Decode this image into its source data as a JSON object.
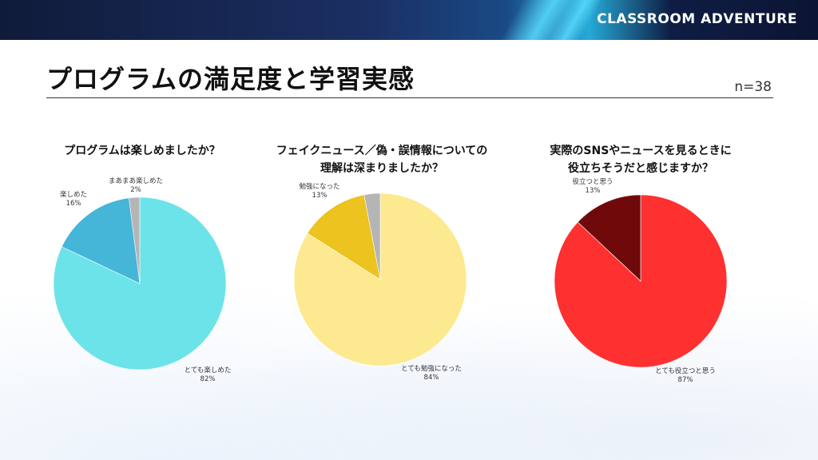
{
  "header": {
    "brand": "CLASSROOM ADVENTURE"
  },
  "page": {
    "title": "プログラムの満足度と学習実感",
    "sample_size": "n=38"
  },
  "chart_data": [
    {
      "type": "pie",
      "title_lines": [
        "プログラムは楽しめましたか？"
      ],
      "slices": [
        {
          "label": "とても楽しめた",
          "percent_label": "82%",
          "value": 82,
          "color": "#6ce3e8"
        },
        {
          "label": "楽しめた",
          "percent_label": "16%",
          "value": 16,
          "color": "#45b5d8"
        },
        {
          "label": "まあまあ楽しめた",
          "percent_label": "2%",
          "value": 2,
          "color": "#b5b5b5"
        }
      ]
    },
    {
      "type": "pie",
      "title_lines": [
        "フェイクニュース／偽・誤情報についての",
        "理解は深まりましたか？"
      ],
      "slices": [
        {
          "label": "とても勉強になった",
          "percent_label": "84%",
          "value": 84,
          "color": "#fde98f"
        },
        {
          "label": "勉強になった",
          "percent_label": "13%",
          "value": 13,
          "color": "#ecc31f"
        },
        {
          "label": "",
          "percent_label": "",
          "value": 3,
          "color": "#b5b5b5"
        }
      ]
    },
    {
      "type": "pie",
      "title_lines": [
        "実際のSNSやニュースを見るときに",
        "役立ちそうだと感じますか？"
      ],
      "slices": [
        {
          "label": "とても役立つと思う",
          "percent_label": "87%",
          "value": 87,
          "color": "#ff3030"
        },
        {
          "label": "役立つと思う",
          "percent_label": "13%",
          "value": 13,
          "color": "#700a0a"
        }
      ]
    }
  ]
}
